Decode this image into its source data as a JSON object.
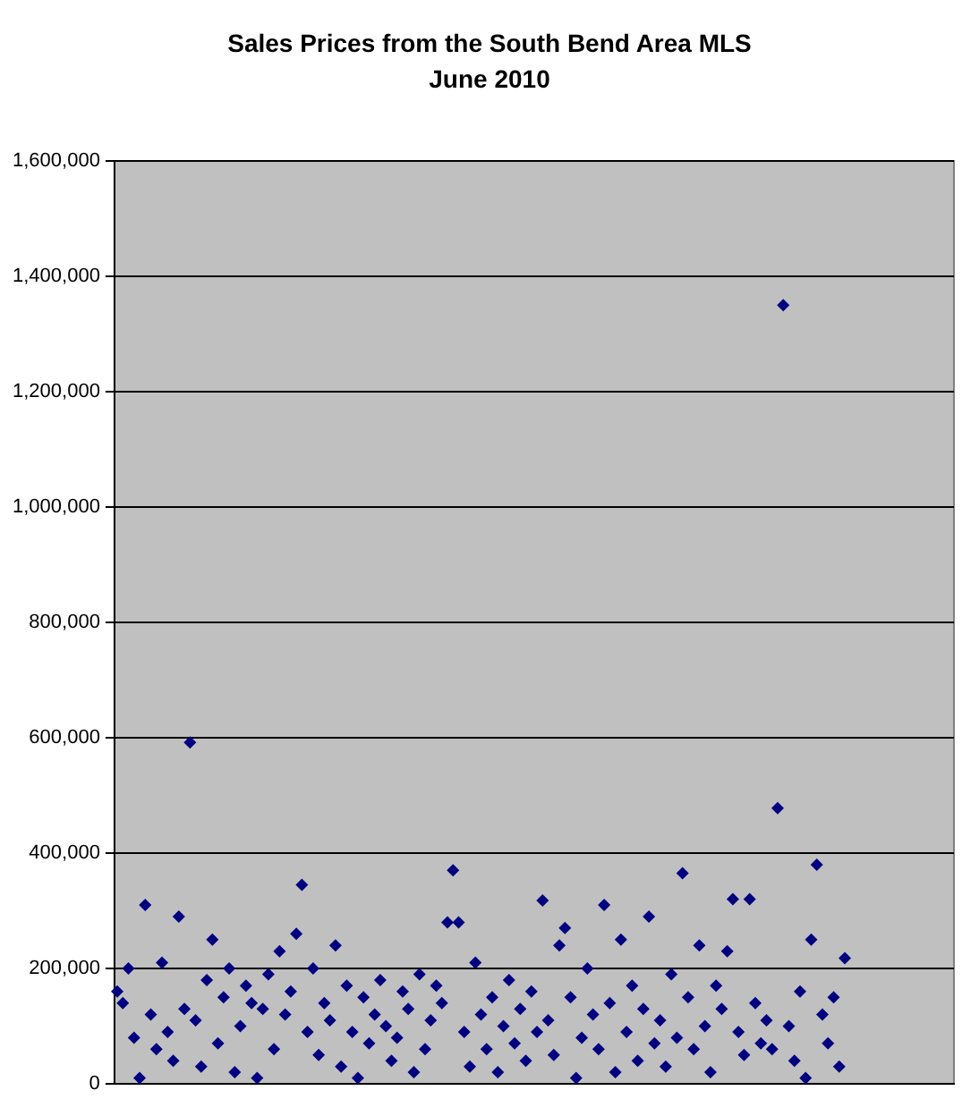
{
  "chart_data": {
    "type": "scatter",
    "title": "Sales Prices from the South Bend Area MLS",
    "subtitle": "June 2010",
    "categories": [
      null,
      null,
      null,
      null,
      null,
      null,
      null,
      null,
      null,
      null,
      null,
      null,
      null,
      null,
      null,
      null,
      null,
      null,
      null,
      null,
      null,
      null,
      null,
      null,
      null,
      null,
      null,
      null,
      null,
      null,
      null,
      null,
      null,
      null,
      null,
      null,
      null,
      null,
      null,
      null,
      null,
      null,
      null,
      null,
      null,
      null,
      null,
      null,
      null,
      null,
      null,
      null,
      null,
      null,
      null,
      null,
      null,
      null,
      null,
      null,
      null,
      null,
      null,
      null,
      null,
      null,
      null,
      null,
      null,
      null,
      null,
      null,
      null,
      null,
      null,
      null,
      null,
      null,
      null,
      null,
      null,
      null,
      null,
      null,
      null,
      null,
      null,
      null,
      null,
      null,
      null,
      null,
      null,
      null,
      null,
      null,
      null,
      null,
      null,
      null,
      null,
      null,
      null,
      null,
      null,
      null,
      null,
      null,
      null,
      null,
      null,
      null,
      null,
      null,
      null,
      null,
      null,
      null,
      null,
      null,
      null,
      null,
      null,
      null,
      null,
      null,
      null,
      null,
      null,
      null,
      null,
      null,
      null,
      null,
      null,
      null,
      null,
      null,
      null,
      null,
      null,
      null,
      null,
      null,
      null,
      null,
      null,
      null,
      null,
      null
    ],
    "series": [
      {
        "color": "#000080",
        "values": [
          160000,
          140000,
          200000,
          80000,
          10000,
          310000,
          120000,
          60000,
          210000,
          90000,
          40000,
          290000,
          130000,
          592000,
          110000,
          30000,
          180000,
          250000,
          70000,
          150000,
          200000,
          20000,
          100000,
          170000,
          140000,
          10000,
          130000,
          190000,
          60000,
          230000,
          120000,
          160000,
          260000,
          345000,
          90000,
          200000,
          50000,
          140000,
          110000,
          240000,
          30000,
          170000,
          90000,
          10000,
          150000,
          70000,
          120000,
          180000,
          100000,
          40000,
          80000,
          160000,
          130000,
          20000,
          190000,
          60000,
          110000,
          170000,
          140000,
          280000,
          370000,
          280000,
          90000,
          30000,
          210000,
          120000,
          60000,
          150000,
          20000,
          100000,
          180000,
          70000,
          130000,
          40000,
          160000,
          90000,
          318000,
          110000,
          50000,
          240000,
          270000,
          150000,
          10000,
          80000,
          200000,
          120000,
          60000,
          310000,
          140000,
          20000,
          250000,
          90000,
          170000,
          40000,
          130000,
          290000,
          70000,
          110000,
          30000,
          190000,
          80000,
          365000,
          150000,
          60000,
          240000,
          100000,
          20000,
          170000,
          130000,
          230000,
          320000,
          90000,
          50000,
          320000,
          140000,
          70000,
          110000,
          60000,
          478000,
          1350000,
          100000,
          40000,
          160000,
          10000,
          250000,
          380000,
          120000,
          70000,
          150000,
          30000,
          218000,
          null,
          null,
          null,
          null,
          null,
          null,
          null,
          null,
          null,
          null,
          null,
          null,
          null,
          null,
          null,
          null,
          null,
          null,
          null
        ]
      }
    ],
    "ylim": [
      0,
      1600000
    ],
    "yticks": [
      0,
      {
        "value": 200000,
        "label": "200,000"
      },
      {
        "value": 400000,
        "label": "400,000"
      },
      {
        "value": 600000,
        "label": "600,000"
      },
      {
        "value": 800000,
        "label": "800,000"
      },
      {
        "value": 1000000,
        "label": "1,000,000"
      },
      {
        "value": 1200000,
        "label": "1,200,000"
      },
      {
        "value": 1400000,
        "label": "1,400,000"
      },
      {
        "value": 1600000,
        "label": "1,600,000"
      }
    ],
    "grid": "y",
    "marker": "diamond",
    "legend": false
  }
}
